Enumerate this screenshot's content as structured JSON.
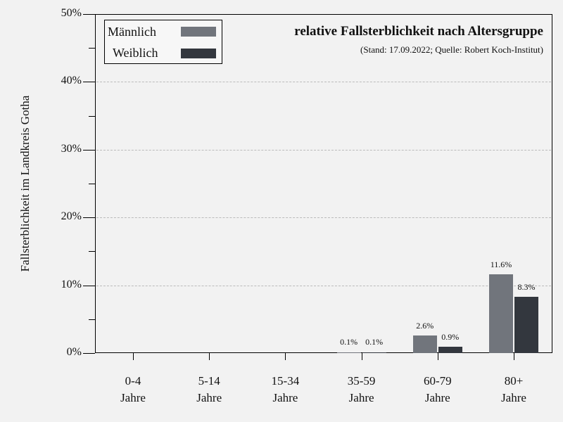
{
  "chart_data": {
    "type": "bar",
    "title": "relative Fallsterblichkeit nach Altersgruppe",
    "subtitle": "(Stand: 17.09.2022; Quelle: Robert Koch-Institut)",
    "xlabel": "",
    "ylabel": "Fallsterblichkeit im Landkreis Gotha",
    "ylim": [
      0,
      50
    ],
    "y_ticks": [
      "0%",
      "10%",
      "20%",
      "30%",
      "40%",
      "50%"
    ],
    "grid": "horizontal dashed",
    "legend_position": "upper left",
    "categories": [
      {
        "line1": "0-4",
        "line2": "Jahre"
      },
      {
        "line1": "5-14",
        "line2": "Jahre"
      },
      {
        "line1": "15-34",
        "line2": "Jahre"
      },
      {
        "line1": "35-59",
        "line2": "Jahre"
      },
      {
        "line1": "60-79",
        "line2": "Jahre"
      },
      {
        "line1": "80+",
        "line2": "Jahre"
      }
    ],
    "series": [
      {
        "name": "Männlich",
        "color": "#71757c",
        "values": [
          0,
          0,
          0,
          0.1,
          2.6,
          11.6
        ],
        "labels": [
          "",
          "",
          "",
          "0.1%",
          "2.6%",
          "11.6%"
        ]
      },
      {
        "name": "Weiblich",
        "color": "#33373e",
        "values": [
          0,
          0,
          0,
          0.1,
          0.9,
          8.3
        ],
        "labels": [
          "",
          "",
          "",
          "0.1%",
          "0.9%",
          "8.3%"
        ]
      }
    ]
  },
  "colors": {
    "background": "#f2f2f2",
    "male": "#71757c",
    "female": "#33373e",
    "grid": "#bbbbbb"
  }
}
